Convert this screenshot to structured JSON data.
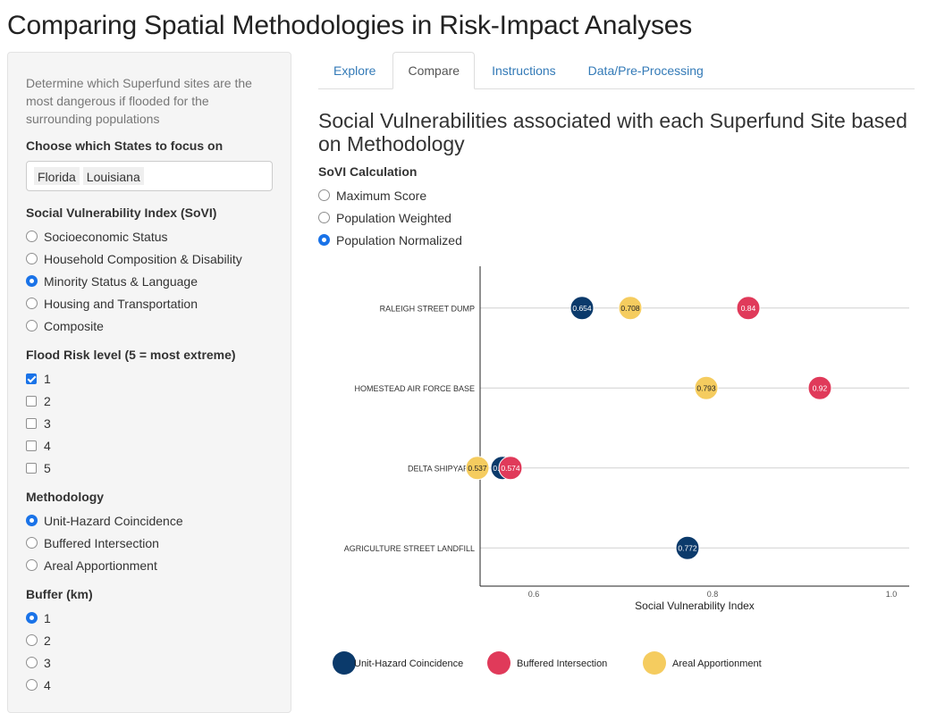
{
  "app": {
    "title": "Comparing Spatial Methodologies in Risk-Impact Analyses"
  },
  "sidebar": {
    "intro": "Determine which Superfund sites are the most dangerous if flooded for the surrounding populations",
    "states": {
      "label": "Choose which States to focus on",
      "selected": [
        "Florida",
        "Louisiana"
      ]
    },
    "sovi": {
      "label": "Social Vulnerability Index (SoVI)",
      "options": [
        "Socioeconomic Status",
        "Household Composition & Disability",
        "Minority Status & Language",
        "Housing and Transportation",
        "Composite"
      ],
      "selected": "Minority Status & Language"
    },
    "flood": {
      "label": "Flood Risk level (5 = most extreme)",
      "options": [
        "1",
        "2",
        "3",
        "4",
        "5"
      ],
      "checked": [
        "1"
      ]
    },
    "methodology": {
      "label": "Methodology",
      "options": [
        "Unit-Hazard Coincidence",
        "Buffered Intersection",
        "Areal Apportionment"
      ],
      "selected": "Unit-Hazard Coincidence"
    },
    "buffer": {
      "label": "Buffer (km)",
      "options": [
        "1",
        "2",
        "3",
        "4"
      ],
      "selected": "1"
    }
  },
  "main": {
    "tabs": [
      "Explore",
      "Compare",
      "Instructions",
      "Data/Pre-Processing"
    ],
    "active_tab": "Compare",
    "heading": "Social Vulnerabilities associated with each Superfund Site based on Methodology",
    "sovi_calc": {
      "label": "SoVI Calculation",
      "options": [
        "Maximum Score",
        "Population Weighted",
        "Population Normalized"
      ],
      "selected": "Population Normalized"
    }
  },
  "chart_data": {
    "type": "scatter",
    "title": "",
    "xlabel": "Social Vulnerability Index",
    "ylabel": "",
    "xlim": [
      0.54,
      1.02
    ],
    "xticks": [
      0.6,
      0.8,
      1.0
    ],
    "xtick_labels": [
      "0.6",
      "0.8",
      "1.0"
    ],
    "grid": "horizontal",
    "legend": "bottom",
    "categories": [
      "RALEIGH STREET DUMP",
      "HOMESTEAD AIR FORCE BASE",
      "DELTA SHIPYARD",
      "AGRICULTURE STREET LANDFILL"
    ],
    "series": [
      {
        "name": "Unit-Hazard Coincidence",
        "color": "#0b3a6b",
        "label_color": "#ffffff",
        "points": [
          {
            "cat": "RALEIGH STREET DUMP",
            "x": 0.654
          },
          {
            "cat": "DELTA SHIPYARD",
            "x": 0.565
          },
          {
            "cat": "AGRICULTURE STREET LANDFILL",
            "x": 0.772
          }
        ]
      },
      {
        "name": "Buffered Intersection",
        "color": "#e03a5a",
        "label_color": "#ffffff",
        "points": [
          {
            "cat": "RALEIGH STREET DUMP",
            "x": 0.84
          },
          {
            "cat": "HOMESTEAD AIR FORCE BASE",
            "x": 0.92
          },
          {
            "cat": "DELTA SHIPYARD",
            "x": 0.574
          }
        ]
      },
      {
        "name": "Areal Apportionment",
        "color": "#f5cc5f",
        "label_color": "#222222",
        "points": [
          {
            "cat": "RALEIGH STREET DUMP",
            "x": 0.708
          },
          {
            "cat": "HOMESTEAD AIR FORCE BASE",
            "x": 0.793
          },
          {
            "cat": "DELTA SHIPYARD",
            "x": 0.537
          }
        ]
      }
    ]
  }
}
